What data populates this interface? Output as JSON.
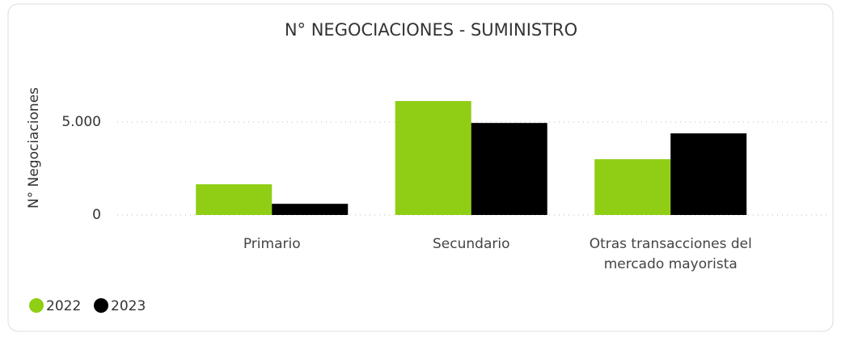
{
  "chart_data": {
    "type": "bar",
    "title": "N° NEGOCIACIONES - SUMINISTRO",
    "y_label": "N° Negociaciones",
    "categories": [
      "Primario",
      "Secundario",
      "Otras transacciones del mercado mayorista"
    ],
    "series": [
      {
        "name": "2022",
        "color": "#8fce14",
        "values": [
          1650,
          6130,
          3000
        ]
      },
      {
        "name": "2023",
        "color": "#000000",
        "values": [
          600,
          4950,
          4390
        ]
      }
    ],
    "ylim": [
      0,
      7200
    ],
    "yticks": [
      0,
      {
        "value": 5000,
        "label": "5.000"
      }
    ],
    "grid": true,
    "legend": "bottom-left"
  }
}
